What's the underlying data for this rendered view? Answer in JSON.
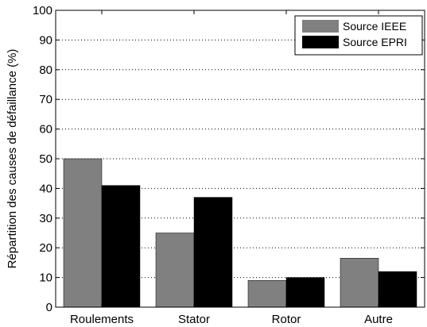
{
  "chart_data": {
    "type": "bar",
    "categories": [
      "Roulements",
      "Stator",
      "Rotor",
      "Autre"
    ],
    "series": [
      {
        "name": "Source IEEE",
        "values": [
          50,
          25,
          9,
          16.5
        ],
        "color": "#808080"
      },
      {
        "name": "Source EPRI",
        "values": [
          41,
          37,
          10,
          12
        ],
        "color": "#000000"
      }
    ],
    "title": "",
    "xlabel": "",
    "ylabel": "Répartition des causes de défaillance (%)",
    "ylim": [
      0,
      100
    ],
    "yticks": [
      0,
      10,
      20,
      30,
      40,
      50,
      60,
      70,
      80,
      90,
      100
    ],
    "grid": true,
    "legend_position": "top-right"
  }
}
